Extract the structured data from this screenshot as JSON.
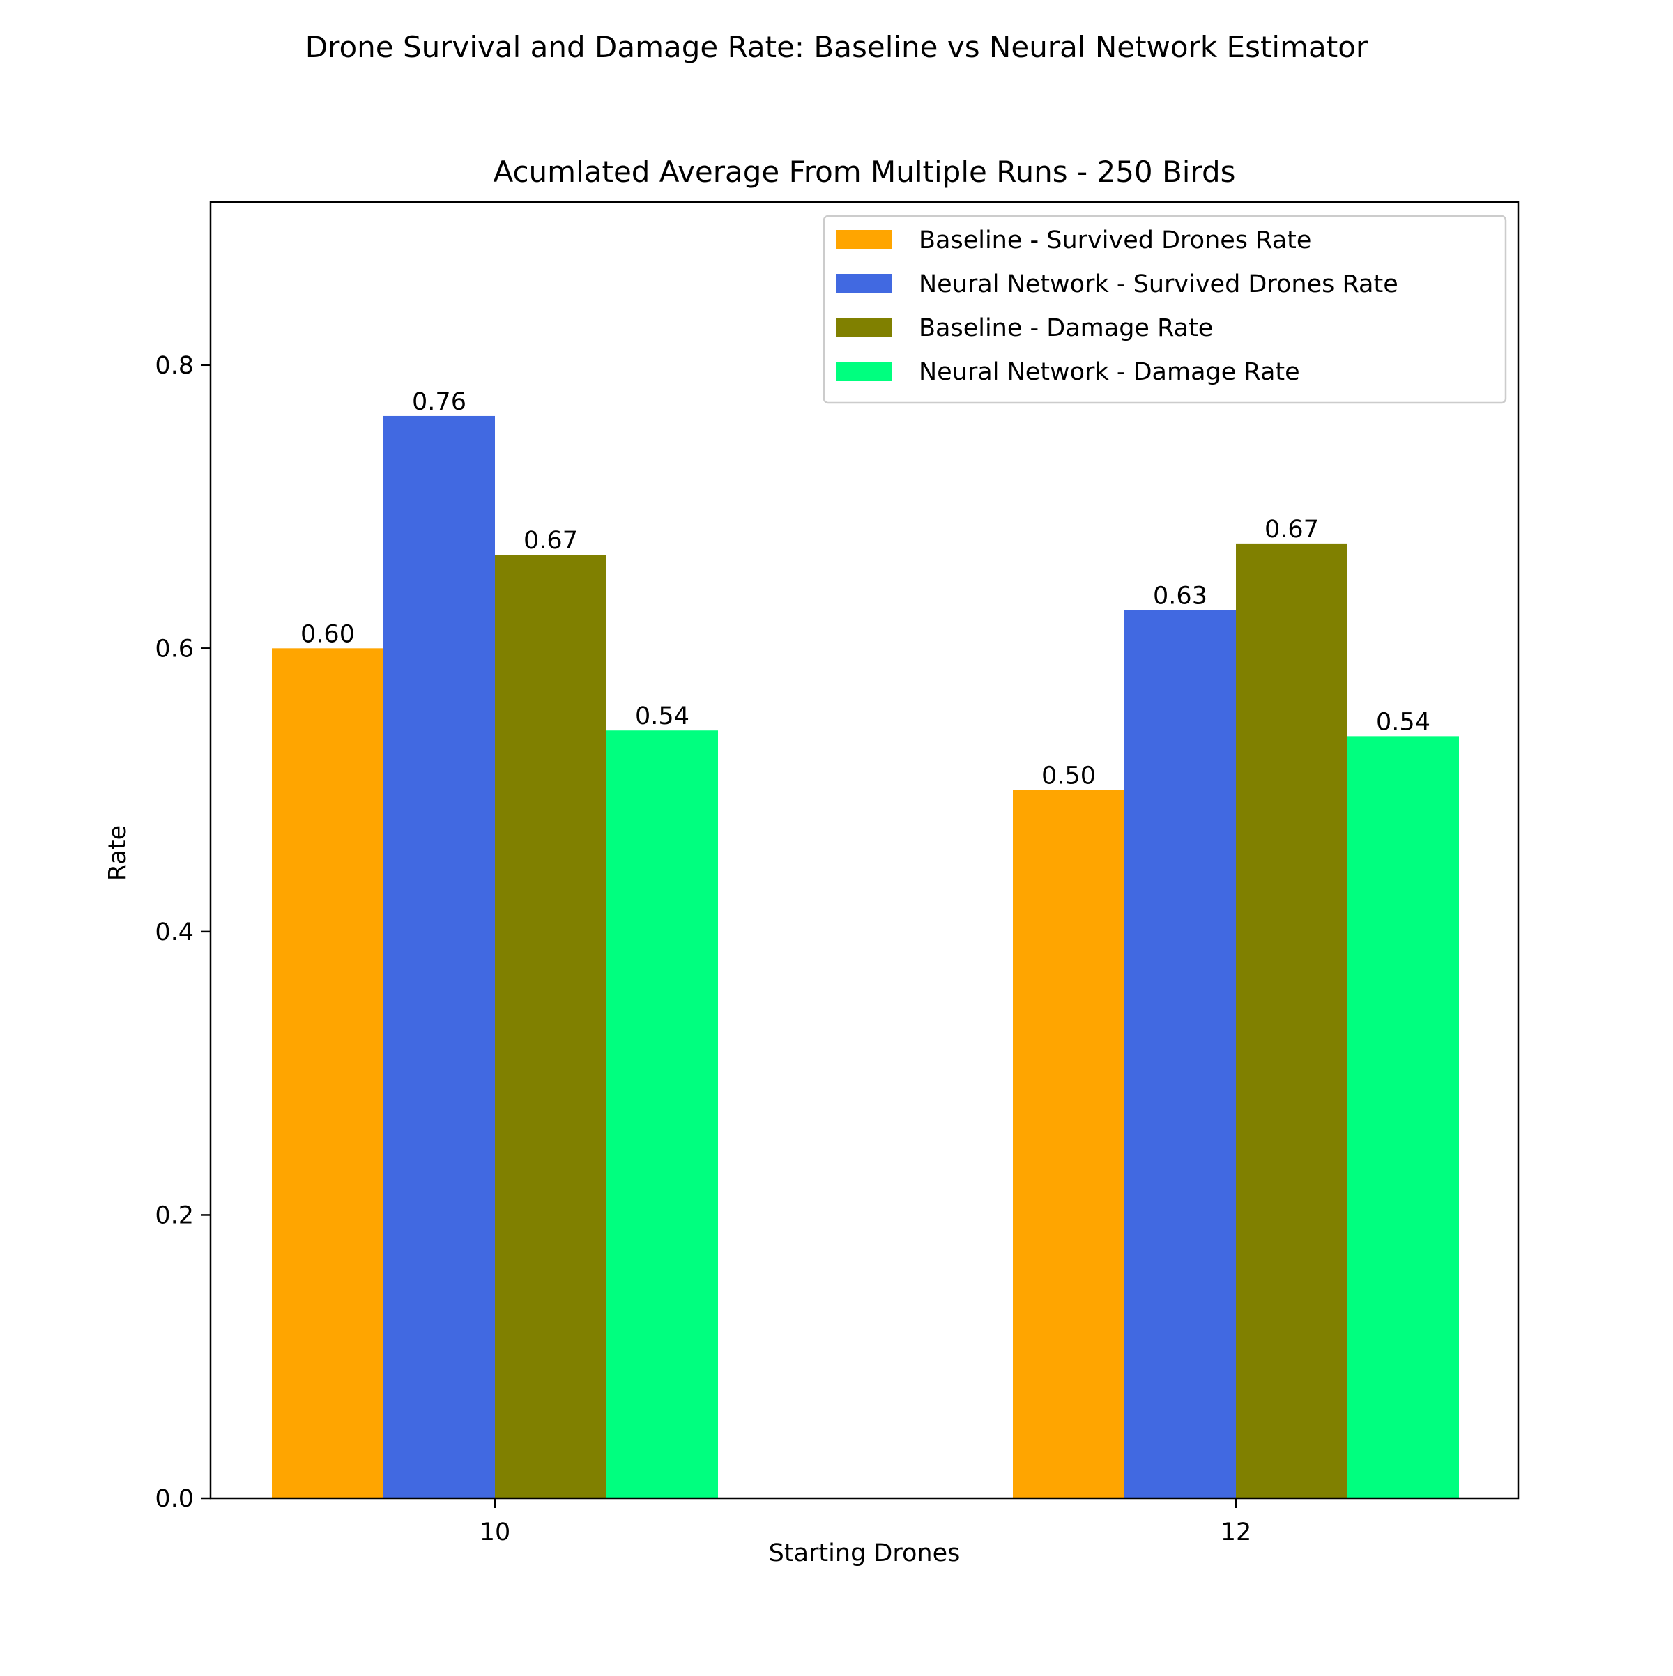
{
  "chart_data": {
    "type": "bar",
    "suptitle": "Drone Survival and Damage Rate: Baseline vs Neural Network Estimator",
    "title": "Acumlated Average From Multiple Runs - 250 Birds",
    "xlabel": "Starting Drones",
    "ylabel": "Rate",
    "categories": [
      "10",
      "12"
    ],
    "ylim": [
      0,
      0.915
    ],
    "yticks": [
      0.0,
      0.2,
      0.4,
      0.6,
      0.8
    ],
    "ytick_labels": [
      "0.0",
      "0.2",
      "0.4",
      "0.6",
      "0.8"
    ],
    "legend_position": "top-right",
    "grid": false,
    "series": [
      {
        "name": "Baseline - Survived Drones Rate",
        "color": "#FFA500",
        "values": [
          0.6,
          0.5
        ],
        "labels": [
          "0.60",
          "0.50"
        ]
      },
      {
        "name": "Neural Network - Survived Drones Rate",
        "color": "#4169E1",
        "values": [
          0.764,
          0.627
        ],
        "labels": [
          "0.76",
          "0.63"
        ]
      },
      {
        "name": "Baseline - Damage Rate",
        "color": "#808000",
        "values": [
          0.666,
          0.674
        ],
        "labels": [
          "0.67",
          "0.67"
        ]
      },
      {
        "name": "Neural Network - Damage Rate",
        "color": "#00FF7F",
        "values": [
          0.542,
          0.538
        ],
        "labels": [
          "0.54",
          "0.54"
        ]
      }
    ]
  }
}
